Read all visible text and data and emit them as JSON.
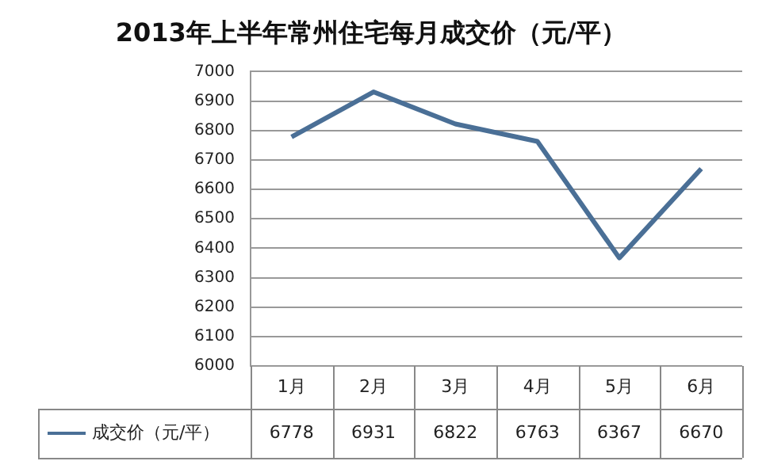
{
  "chart_data": {
    "type": "line",
    "title": "2013年上半年常州住宅每月成交价（元/平）",
    "categories": [
      "1月",
      "2月",
      "3月",
      "4月",
      "5月",
      "6月"
    ],
    "series": [
      {
        "name": "成交价（元/平）",
        "color": "#4a6f96",
        "values": [
          6778,
          6931,
          6822,
          6763,
          6367,
          6670
        ]
      }
    ],
    "ylim": [
      6000,
      7000
    ],
    "yticks": [
      6000,
      6100,
      6200,
      6300,
      6400,
      6500,
      6600,
      6700,
      6800,
      6900,
      7000
    ],
    "grid": "y",
    "legend": "bottom",
    "data_labels": true,
    "marker": "none",
    "line_style": "solid"
  }
}
